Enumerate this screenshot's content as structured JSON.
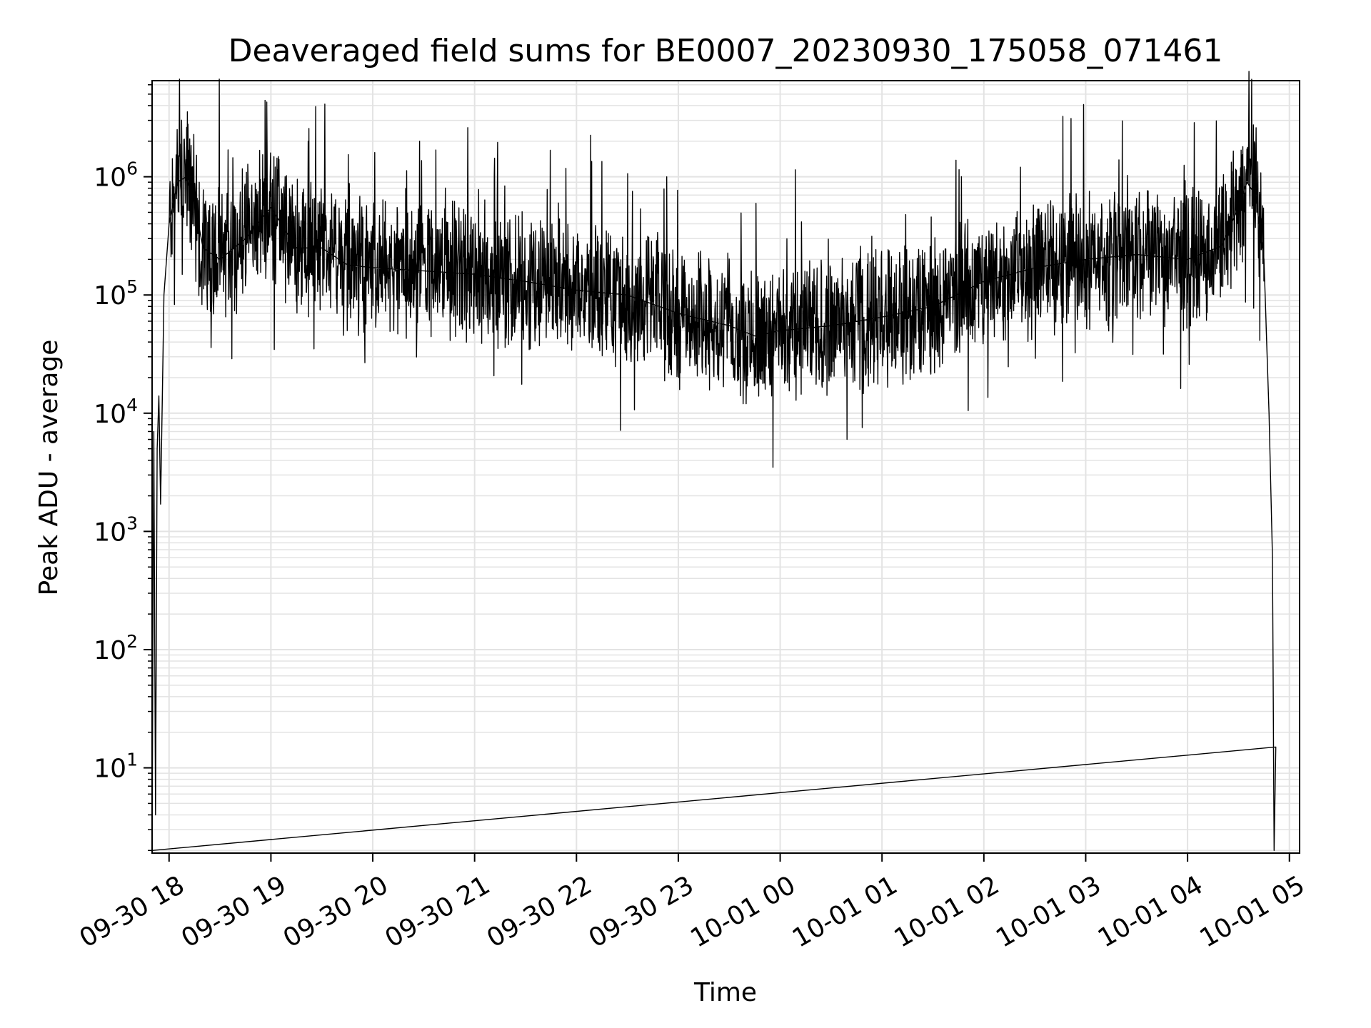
{
  "chart_data": {
    "type": "line",
    "title": "Deaveraged field sums for BE0007_20230930_175058_071461",
    "xlabel": "Time",
    "ylabel": "Peak ADU - average",
    "x_ticks": [
      "09-30 18",
      "09-30 19",
      "09-30 20",
      "09-30 21",
      "09-30 22",
      "09-30 23",
      "10-01 00",
      "10-01 01",
      "10-01 02",
      "10-01 03",
      "10-01 04",
      "10-01 05"
    ],
    "y_ticks": [
      {
        "base": "10",
        "exp": "1"
      },
      {
        "base": "10",
        "exp": "2"
      },
      {
        "base": "10",
        "exp": "3"
      },
      {
        "base": "10",
        "exp": "4"
      },
      {
        "base": "10",
        "exp": "5"
      },
      {
        "base": "10",
        "exp": "6"
      }
    ],
    "xlim": [
      "2023-09-30 17:50",
      "2023-10-01 05:06"
    ],
    "ylim": [
      1.9,
      6500000
    ],
    "y_scale": "log",
    "grid": true,
    "line_color": "#000000",
    "grid_color": "#e3e3e3",
    "series": [
      {
        "points": [
          [
            "2023-09-30 17:50",
            2
          ],
          [
            "2023-09-30 17:51",
            7000
          ],
          [
            "2023-09-30 17:52",
            4
          ],
          [
            "2023-09-30 17:53",
            5000
          ],
          [
            "2023-09-30 17:54",
            14000
          ],
          [
            "2023-09-30 17:55",
            1700
          ],
          [
            "2023-09-30 17:57",
            100000
          ],
          [
            "2023-09-30 18:00",
            400000
          ],
          [
            "2023-09-30 18:05",
            900000
          ],
          [
            "2023-09-30 18:10",
            1000000
          ],
          [
            "2023-09-30 18:15",
            600000
          ],
          [
            "2023-09-30 18:20",
            250000
          ],
          [
            "2023-09-30 18:30",
            200000
          ],
          [
            "2023-09-30 18:45",
            300000
          ],
          [
            "2023-09-30 19:00",
            550000
          ],
          [
            "2023-09-30 19:15",
            250000
          ],
          [
            "2023-09-30 19:30",
            250000
          ],
          [
            "2023-09-30 19:45",
            180000
          ],
          [
            "2023-09-30 20:00",
            170000
          ],
          [
            "2023-09-30 20:30",
            160000
          ],
          [
            "2023-09-30 21:00",
            150000
          ],
          [
            "2023-09-30 21:30",
            130000
          ],
          [
            "2023-09-30 22:00",
            110000
          ],
          [
            "2023-09-30 22:30",
            100000
          ],
          [
            "2023-09-30 23:00",
            70000
          ],
          [
            "2023-09-30 23:30",
            55000
          ],
          [
            "2023-09-30 23:45",
            45000
          ],
          [
            "2023-10-01 00:00",
            50000
          ],
          [
            "2023-10-01 00:30",
            55000
          ],
          [
            "2023-10-01 01:00",
            65000
          ],
          [
            "2023-10-01 01:30",
            80000
          ],
          [
            "2023-10-01 02:00",
            130000
          ],
          [
            "2023-10-01 02:30",
            170000
          ],
          [
            "2023-10-01 03:00",
            200000
          ],
          [
            "2023-10-01 03:30",
            220000
          ],
          [
            "2023-10-01 04:00",
            200000
          ],
          [
            "2023-10-01 04:20",
            260000
          ],
          [
            "2023-10-01 04:30",
            550000
          ],
          [
            "2023-10-01 04:35",
            900000
          ],
          [
            "2023-10-01 04:40",
            700000
          ],
          [
            "2023-10-01 04:45",
            200000
          ],
          [
            "2023-10-01 04:48",
            10000
          ],
          [
            "2023-10-01 04:50",
            600
          ],
          [
            "2023-10-01 04:51",
            2
          ],
          [
            "2023-10-01 04:52",
            15
          ]
        ]
      }
    ]
  }
}
